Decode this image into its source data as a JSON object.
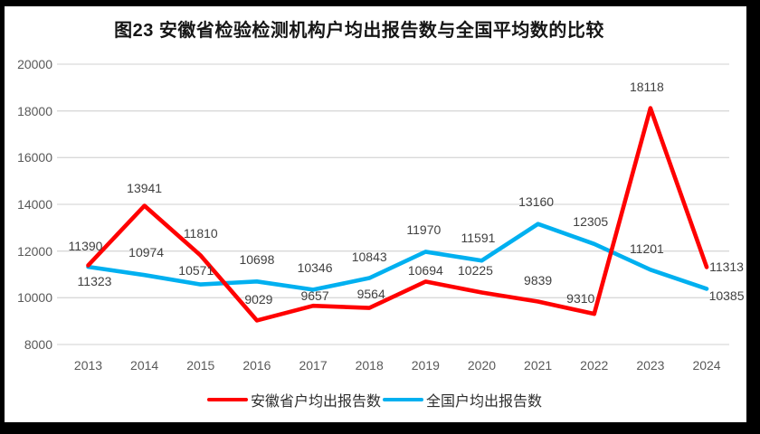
{
  "title": "图23 安徽省检验检测机构户均出报告数与全国平均数的比较",
  "chart_data": {
    "type": "line",
    "title": "图23 安徽省检验检测机构户均出报告数与全国平均数的比较",
    "categories": [
      "2013",
      "2014",
      "2015",
      "2016",
      "2017",
      "2018",
      "2019",
      "2020",
      "2021",
      "2022",
      "2023",
      "2024"
    ],
    "series": [
      {
        "name": "安徽省户均出报告数",
        "color": "#FF0000",
        "values": [
          11390,
          13941,
          11810,
          9029,
          9657,
          9564,
          10694,
          10225,
          9839,
          9310,
          18118,
          11313
        ],
        "label_offsets": [
          [
            -3,
            -21
          ],
          [
            0,
            -20
          ],
          [
            0,
            -25
          ],
          [
            2,
            -23
          ],
          [
            2,
            -11
          ],
          [
            2,
            -16
          ],
          [
            0,
            -12
          ],
          [
            -7,
            -25
          ],
          [
            0,
            -23
          ],
          [
            -15,
            -17
          ],
          [
            -4,
            -24
          ],
          [
            22,
            0
          ]
        ]
      },
      {
        "name": "全国户均出报告数",
        "color": "#00B0F0",
        "values": [
          11323,
          10974,
          10571,
          10698,
          10346,
          10843,
          11970,
          11591,
          13160,
          12305,
          11201,
          10385
        ],
        "label_offsets": [
          [
            7,
            16
          ],
          [
            2,
            -25
          ],
          [
            -5,
            -16
          ],
          [
            0,
            -24
          ],
          [
            2,
            -24
          ],
          [
            0,
            -24
          ],
          [
            -2,
            -24
          ],
          [
            -4,
            -25
          ],
          [
            -2,
            -25
          ],
          [
            -4,
            -25
          ],
          [
            -4,
            -23
          ],
          [
            22,
            8
          ]
        ]
      }
    ],
    "ylim": [
      8000,
      20000
    ],
    "ytick_step": 2000,
    "yticks": [
      8000,
      10000,
      12000,
      14000,
      16000,
      18000,
      20000
    ],
    "grid": true,
    "legend_position": "bottom",
    "grid_color": "#D9D9D9",
    "axis_text_color": "#595959",
    "data_label_color": "#404040",
    "line_width": 4.6
  }
}
